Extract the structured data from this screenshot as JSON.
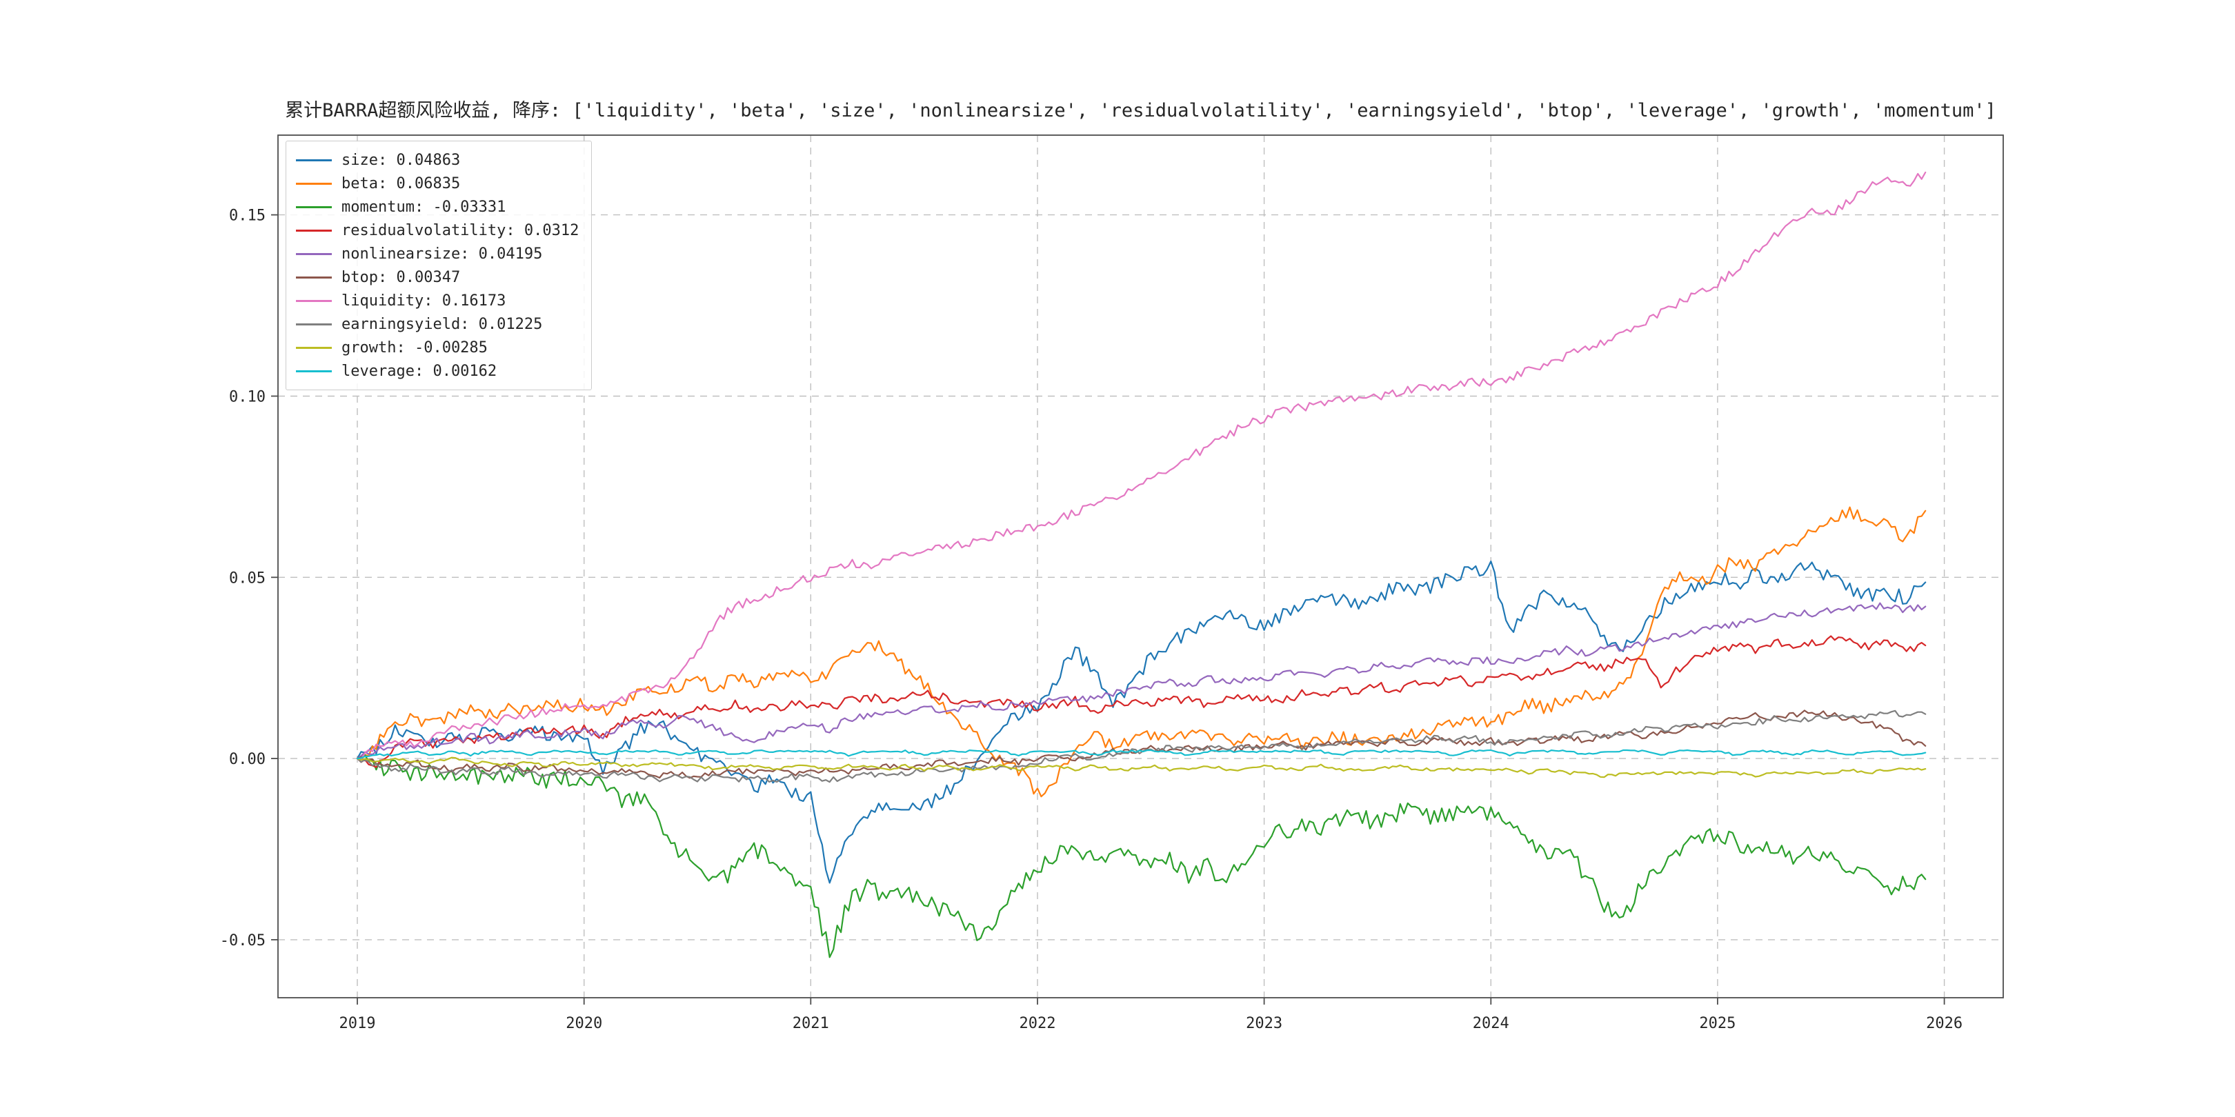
{
  "chart_data": {
    "type": "line",
    "title": "累计BARRA超额风险收益, 降序: ['liquidity', 'beta', 'size', 'nonlinearsize', 'residualvolatility', 'earningsyield', 'btop', 'leverage', 'growth', 'momentum']",
    "x_start_year": 2019,
    "points_per_year": 12,
    "xlim": [
      2018.65,
      2026.26
    ],
    "ylim": [
      -0.066,
      0.172
    ],
    "xticks": [
      2019,
      2020,
      2021,
      2022,
      2023,
      2024,
      2025,
      2026
    ],
    "ytick_values": [
      -0.05,
      0.0,
      0.05,
      0.1,
      0.15
    ],
    "ytick_labels": [
      "-0.05",
      "0.00",
      "0.05",
      "0.10",
      "0.15"
    ],
    "grid": true,
    "grid_style": "dashed",
    "legend_position": "upper-left",
    "axis_color": "#4d4d4d",
    "grid_color": "#bfbfbf",
    "series": [
      {
        "name": "size",
        "label": "size: 0.04863",
        "final_value": 0.04863,
        "color": "#1f77b4",
        "noise": 0.002,
        "values": [
          0.0,
          0.002,
          0.008,
          0.006,
          0.004,
          0.007,
          0.005,
          0.008,
          0.006,
          0.009,
          0.007,
          0.005,
          0.006,
          -0.004,
          0.002,
          0.008,
          0.01,
          0.005,
          0.002,
          -0.002,
          -0.005,
          -0.008,
          -0.006,
          -0.009,
          -0.011,
          -0.034,
          -0.022,
          -0.015,
          -0.012,
          -0.014,
          -0.013,
          -0.01,
          -0.005,
          0.0,
          0.008,
          0.012,
          0.015,
          0.022,
          0.03,
          0.024,
          0.016,
          0.02,
          0.028,
          0.032,
          0.035,
          0.038,
          0.04,
          0.038,
          0.036,
          0.04,
          0.043,
          0.045,
          0.044,
          0.042,
          0.045,
          0.047,
          0.046,
          0.048,
          0.05,
          0.052,
          0.053,
          0.035,
          0.042,
          0.045,
          0.043,
          0.04,
          0.032,
          0.03,
          0.035,
          0.042,
          0.045,
          0.048,
          0.05,
          0.048,
          0.051,
          0.049,
          0.052,
          0.053,
          0.05,
          0.047,
          0.045,
          0.046,
          0.044,
          0.04863
        ]
      },
      {
        "name": "beta",
        "label": "beta: 0.06835",
        "final_value": 0.06835,
        "color": "#ff7f0e",
        "noise": 0.0018,
        "values": [
          0.0,
          0.004,
          0.009,
          0.011,
          0.01,
          0.012,
          0.013,
          0.012,
          0.014,
          0.013,
          0.015,
          0.014,
          0.015,
          0.013,
          0.016,
          0.018,
          0.019,
          0.02,
          0.021,
          0.02,
          0.022,
          0.021,
          0.022,
          0.023,
          0.022,
          0.024,
          0.028,
          0.032,
          0.03,
          0.025,
          0.02,
          0.015,
          0.01,
          0.005,
          0.0,
          -0.003,
          -0.01,
          -0.005,
          0.003,
          0.006,
          0.004,
          0.005,
          0.006,
          0.005,
          0.007,
          0.006,
          0.005,
          0.006,
          0.005,
          0.006,
          0.004,
          0.005,
          0.006,
          0.005,
          0.004,
          0.006,
          0.007,
          0.008,
          0.009,
          0.01,
          0.01,
          0.012,
          0.015,
          0.014,
          0.016,
          0.018,
          0.017,
          0.02,
          0.03,
          0.045,
          0.05,
          0.048,
          0.052,
          0.055,
          0.053,
          0.057,
          0.06,
          0.062,
          0.065,
          0.068,
          0.066,
          0.064,
          0.06,
          0.06835
        ]
      },
      {
        "name": "momentum",
        "label": "momentum: -0.03331",
        "final_value": -0.03331,
        "color": "#2ca02c",
        "noise": 0.0025,
        "values": [
          0.0,
          -0.003,
          -0.002,
          -0.004,
          -0.003,
          -0.005,
          -0.004,
          -0.006,
          -0.005,
          -0.004,
          -0.006,
          -0.005,
          -0.006,
          -0.008,
          -0.012,
          -0.01,
          -0.018,
          -0.025,
          -0.03,
          -0.035,
          -0.03,
          -0.025,
          -0.028,
          -0.033,
          -0.035,
          -0.054,
          -0.04,
          -0.035,
          -0.038,
          -0.036,
          -0.04,
          -0.042,
          -0.045,
          -0.05,
          -0.042,
          -0.035,
          -0.03,
          -0.026,
          -0.024,
          -0.028,
          -0.025,
          -0.027,
          -0.03,
          -0.028,
          -0.032,
          -0.03,
          -0.033,
          -0.028,
          -0.022,
          -0.02,
          -0.018,
          -0.02,
          -0.017,
          -0.016,
          -0.018,
          -0.015,
          -0.014,
          -0.016,
          -0.015,
          -0.014,
          -0.015,
          -0.018,
          -0.022,
          -0.028,
          -0.025,
          -0.032,
          -0.04,
          -0.045,
          -0.035,
          -0.03,
          -0.025,
          -0.022,
          -0.02,
          -0.023,
          -0.026,
          -0.024,
          -0.027,
          -0.025,
          -0.028,
          -0.03,
          -0.033,
          -0.036,
          -0.034,
          -0.03331
        ]
      },
      {
        "name": "residualvolatility",
        "label": "residualvolatility: 0.0312",
        "final_value": 0.0312,
        "color": "#d62728",
        "noise": 0.0012,
        "values": [
          0.0,
          -0.002,
          0.003,
          0.005,
          0.004,
          0.006,
          0.005,
          0.007,
          0.006,
          0.008,
          0.007,
          0.008,
          0.008,
          0.006,
          0.01,
          0.012,
          0.013,
          0.012,
          0.014,
          0.013,
          0.015,
          0.013,
          0.014,
          0.015,
          0.015,
          0.014,
          0.016,
          0.017,
          0.016,
          0.017,
          0.018,
          0.017,
          0.016,
          0.015,
          0.016,
          0.015,
          0.014,
          0.015,
          0.016,
          0.013,
          0.015,
          0.016,
          0.015,
          0.017,
          0.016,
          0.015,
          0.016,
          0.017,
          0.017,
          0.016,
          0.018,
          0.017,
          0.019,
          0.018,
          0.02,
          0.019,
          0.021,
          0.02,
          0.022,
          0.021,
          0.022,
          0.023,
          0.022,
          0.024,
          0.025,
          0.026,
          0.025,
          0.027,
          0.028,
          0.02,
          0.025,
          0.028,
          0.03,
          0.031,
          0.03,
          0.032,
          0.031,
          0.032,
          0.033,
          0.032,
          0.031,
          0.032,
          0.03,
          0.0312
        ]
      },
      {
        "name": "nonlinearsize",
        "label": "nonlinearsize: 0.04195",
        "final_value": 0.04195,
        "color": "#9467bd",
        "noise": 0.001,
        "values": [
          0.0,
          0.002,
          0.004,
          0.003,
          0.005,
          0.004,
          0.006,
          0.005,
          0.006,
          0.007,
          0.006,
          0.007,
          0.008,
          0.006,
          0.009,
          0.01,
          0.009,
          0.011,
          0.01,
          0.008,
          0.006,
          0.005,
          0.007,
          0.009,
          0.01,
          0.008,
          0.011,
          0.012,
          0.013,
          0.012,
          0.014,
          0.013,
          0.014,
          0.015,
          0.014,
          0.015,
          0.015,
          0.016,
          0.017,
          0.016,
          0.018,
          0.019,
          0.02,
          0.021,
          0.02,
          0.022,
          0.021,
          0.022,
          0.022,
          0.023,
          0.024,
          0.023,
          0.025,
          0.024,
          0.026,
          0.025,
          0.026,
          0.027,
          0.026,
          0.027,
          0.027,
          0.026,
          0.028,
          0.029,
          0.03,
          0.029,
          0.031,
          0.03,
          0.032,
          0.033,
          0.034,
          0.035,
          0.036,
          0.037,
          0.038,
          0.039,
          0.04,
          0.04,
          0.041,
          0.041,
          0.042,
          0.042,
          0.041,
          0.04195
        ]
      },
      {
        "name": "btop",
        "label": "btop: 0.00347",
        "final_value": 0.00347,
        "color": "#8c564b",
        "noise": 0.0008,
        "values": [
          0.0,
          -0.001,
          -0.002,
          -0.001,
          -0.002,
          -0.003,
          -0.002,
          -0.003,
          -0.002,
          -0.003,
          -0.002,
          -0.003,
          -0.003,
          -0.004,
          -0.003,
          -0.004,
          -0.005,
          -0.004,
          -0.005,
          -0.004,
          -0.003,
          -0.004,
          -0.003,
          -0.004,
          -0.004,
          -0.003,
          -0.004,
          -0.003,
          -0.002,
          -0.003,
          -0.002,
          -0.001,
          -0.002,
          -0.001,
          0.0,
          -0.001,
          0.0,
          0.001,
          0.0,
          0.001,
          0.002,
          0.002,
          0.003,
          0.002,
          0.003,
          0.003,
          0.002,
          0.003,
          0.003,
          0.004,
          0.003,
          0.004,
          0.004,
          0.005,
          0.004,
          0.005,
          0.004,
          0.005,
          0.005,
          0.004,
          0.005,
          0.004,
          0.005,
          0.005,
          0.006,
          0.005,
          0.006,
          0.007,
          0.006,
          0.007,
          0.008,
          0.009,
          0.01,
          0.011,
          0.012,
          0.011,
          0.012,
          0.013,
          0.012,
          0.011,
          0.01,
          0.008,
          0.005,
          0.00347
        ]
      },
      {
        "name": "liquidity",
        "label": "liquidity: 0.16173",
        "final_value": 0.16173,
        "color": "#e377c2",
        "noise": 0.0012,
        "values": [
          0.0,
          0.003,
          0.005,
          0.004,
          0.006,
          0.008,
          0.009,
          0.01,
          0.011,
          0.012,
          0.013,
          0.014,
          0.015,
          0.014,
          0.016,
          0.018,
          0.02,
          0.022,
          0.03,
          0.038,
          0.042,
          0.044,
          0.046,
          0.048,
          0.05,
          0.052,
          0.054,
          0.053,
          0.055,
          0.056,
          0.057,
          0.058,
          0.059,
          0.06,
          0.062,
          0.063,
          0.064,
          0.066,
          0.068,
          0.07,
          0.072,
          0.075,
          0.078,
          0.08,
          0.083,
          0.086,
          0.089,
          0.092,
          0.094,
          0.096,
          0.097,
          0.098,
          0.099,
          0.1,
          0.1,
          0.101,
          0.102,
          0.102,
          0.103,
          0.104,
          0.104,
          0.105,
          0.107,
          0.109,
          0.111,
          0.113,
          0.115,
          0.117,
          0.12,
          0.123,
          0.126,
          0.128,
          0.131,
          0.135,
          0.14,
          0.144,
          0.148,
          0.152,
          0.15,
          0.154,
          0.158,
          0.16,
          0.158,
          0.16173
        ]
      },
      {
        "name": "earningsyield",
        "label": "earningsyield: 0.01225",
        "final_value": 0.01225,
        "color": "#7f7f7f",
        "noise": 0.0008,
        "values": [
          0.0,
          -0.002,
          -0.003,
          -0.002,
          -0.003,
          -0.004,
          -0.003,
          -0.004,
          -0.003,
          -0.004,
          -0.005,
          -0.004,
          -0.004,
          -0.005,
          -0.004,
          -0.005,
          -0.006,
          -0.005,
          -0.006,
          -0.005,
          -0.006,
          -0.005,
          -0.006,
          -0.005,
          -0.005,
          -0.006,
          -0.005,
          -0.004,
          -0.005,
          -0.004,
          -0.003,
          -0.004,
          -0.003,
          -0.002,
          -0.003,
          -0.002,
          -0.001,
          0.0,
          0.001,
          0.0,
          0.001,
          0.002,
          0.002,
          0.003,
          0.002,
          0.003,
          0.003,
          0.003,
          0.003,
          0.004,
          0.003,
          0.004,
          0.004,
          0.005,
          0.004,
          0.005,
          0.005,
          0.006,
          0.005,
          0.006,
          0.004,
          0.005,
          0.005,
          0.006,
          0.006,
          0.007,
          0.006,
          0.007,
          0.008,
          0.008,
          0.009,
          0.009,
          0.009,
          0.01,
          0.01,
          0.011,
          0.01,
          0.011,
          0.012,
          0.011,
          0.012,
          0.013,
          0.012,
          0.01225
        ]
      },
      {
        "name": "growth",
        "label": "growth: -0.00285",
        "final_value": -0.00285,
        "color": "#bcbd22",
        "noise": 0.0004,
        "values": [
          0.0,
          -0.001,
          0.0,
          -0.001,
          -0.001,
          0.0,
          -0.001,
          -0.001,
          -0.002,
          -0.001,
          -0.002,
          -0.001,
          -0.002,
          -0.001,
          -0.002,
          -0.002,
          -0.001,
          -0.002,
          -0.002,
          -0.003,
          -0.002,
          -0.002,
          -0.003,
          -0.002,
          -0.002,
          -0.003,
          -0.002,
          -0.002,
          -0.003,
          -0.002,
          -0.003,
          -0.002,
          -0.003,
          -0.003,
          -0.002,
          -0.003,
          -0.002,
          -0.002,
          -0.003,
          -0.002,
          -0.003,
          -0.003,
          -0.002,
          -0.003,
          -0.003,
          -0.002,
          -0.003,
          -0.003,
          -0.002,
          -0.003,
          -0.003,
          -0.002,
          -0.003,
          -0.003,
          -0.003,
          -0.002,
          -0.003,
          -0.003,
          -0.003,
          -0.003,
          -0.003,
          -0.003,
          -0.004,
          -0.003,
          -0.004,
          -0.004,
          -0.005,
          -0.004,
          -0.004,
          -0.004,
          -0.004,
          -0.004,
          -0.004,
          -0.004,
          -0.005,
          -0.004,
          -0.004,
          -0.004,
          -0.004,
          -0.003,
          -0.004,
          -0.003,
          -0.003,
          -0.00285
        ]
      },
      {
        "name": "leverage",
        "label": "leverage: 0.00162",
        "final_value": 0.00162,
        "color": "#17becf",
        "noise": 0.0003,
        "values": [
          0.0,
          0.001,
          0.001,
          0.002,
          0.001,
          0.002,
          0.001,
          0.002,
          0.002,
          0.001,
          0.002,
          0.002,
          0.002,
          0.001,
          0.002,
          0.002,
          0.002,
          0.001,
          0.002,
          0.002,
          0.001,
          0.002,
          0.002,
          0.002,
          0.002,
          0.002,
          0.001,
          0.002,
          0.002,
          0.002,
          0.001,
          0.002,
          0.002,
          0.002,
          0.002,
          0.001,
          0.002,
          0.002,
          0.002,
          0.001,
          0.002,
          0.002,
          0.002,
          0.002,
          0.001,
          0.002,
          0.002,
          0.002,
          0.002,
          0.002,
          0.002,
          0.002,
          0.001,
          0.002,
          0.002,
          0.002,
          0.002,
          0.002,
          0.001,
          0.002,
          0.002,
          0.001,
          0.002,
          0.002,
          0.002,
          0.001,
          0.002,
          0.002,
          0.002,
          0.001,
          0.002,
          0.002,
          0.002,
          0.001,
          0.002,
          0.002,
          0.001,
          0.002,
          0.002,
          0.001,
          0.002,
          0.002,
          0.001,
          0.00162
        ]
      }
    ]
  }
}
